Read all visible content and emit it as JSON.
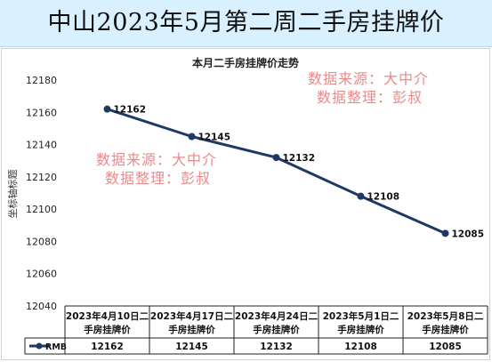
{
  "banner": {
    "title": "中山2023年5月第二周二手房挂牌价"
  },
  "watermarks": [
    {
      "line1": "数据来源：大中介",
      "line2": "数据整理：彭叔"
    },
    {
      "line1": "数据来源：大中介",
      "line2": "数据整理：彭叔"
    }
  ],
  "colors": {
    "banner_bg": "#d9f0ff",
    "series": "#1f3864",
    "watermark": "#e88a8a"
  },
  "chart_data": {
    "type": "line",
    "title": "本月二手房挂牌价走势",
    "xlabel": "",
    "ylabel": "坐标轴标题",
    "ylim": [
      12040,
      12180
    ],
    "yticks": [
      12040,
      12060,
      12080,
      12100,
      12120,
      12140,
      12160,
      12180
    ],
    "categories": [
      "2023年4月10日二手房挂牌价",
      "2023年4月17日二手房挂牌价",
      "2023年4月24日二手房挂牌价",
      "2023年5月1日二手房挂牌价",
      "2023年5月8日二手房挂牌价"
    ],
    "category_lines": [
      [
        "2023年4月10日二",
        "手房挂牌价"
      ],
      [
        "2023年4月17日二",
        "手房挂牌价"
      ],
      [
        "2023年4月24日二",
        "手房挂牌价"
      ],
      [
        "2023年5月1日二",
        "手房挂牌价"
      ],
      [
        "2023年5月8日二",
        "手房挂牌价"
      ]
    ],
    "series": [
      {
        "name": "RMB",
        "values": [
          12162,
          12145,
          12132,
          12108,
          12085
        ]
      }
    ],
    "legend": "table"
  }
}
